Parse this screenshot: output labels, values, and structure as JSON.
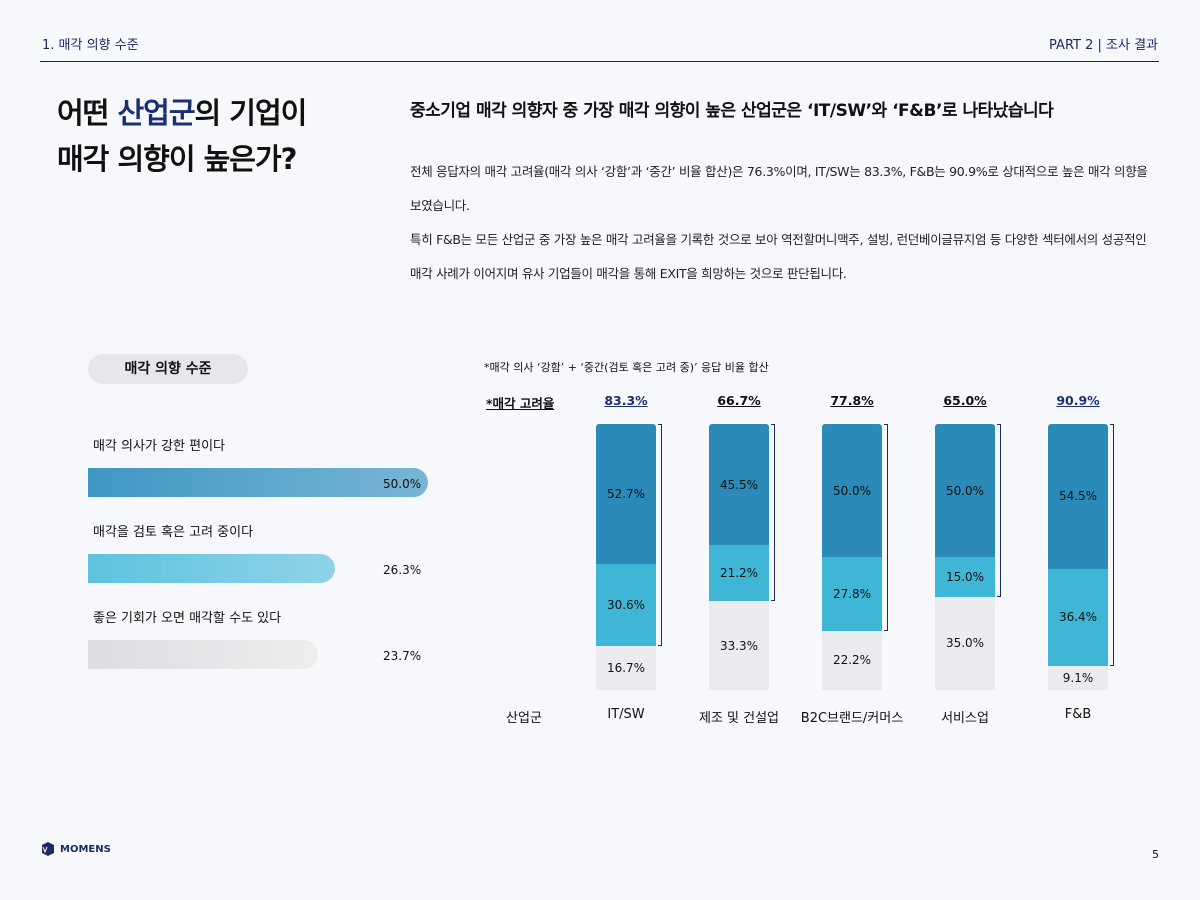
{
  "header": {
    "section": "1. 매각 의향 수준",
    "part": "PART 2 | 조사 결과"
  },
  "title": {
    "line1_pre": "어떤 ",
    "line1_hl": "산업군",
    "line1_post": "의 기업이",
    "line2": "매각 의향이 높은가?"
  },
  "subtitle": "중소기업 매각 의향자 중 가장 매각 의향이 높은 산업군은 ‘IT/SW’와 ‘F&B’로 나타났습니다",
  "body": [
    "전체 응답자의 매각 고려율(매각 의사 ‘강함’과 ‘중간’ 비율 합산)은 76.3%이며, IT/SW는 83.3%, F&B는 90.9%로 상대적으로 높은 매각 의향을 보였습니다.",
    "특히 F&B는 모든 산업군 중 가장 높은 매각 고려율을 기록한 것으로 보아 역전할머니맥주, 설빙, 런던베이글뮤지엄 등 다양한 섹터에서의 성공적인 매각 사례가 이어지며 유사 기업들이 매각을 통해 EXIT을 희망하는 것으로 판단됩니다."
  ],
  "legend_panel": {
    "title": "매각 의향 수준",
    "items": [
      {
        "label": "매각 의사가 강한 편이다",
        "value": "50.0%",
        "color": "#3f97c4"
      },
      {
        "label": "매각을 검토 혹은 고려 중이다",
        "value": "26.3%",
        "color": "#5ec3de"
      },
      {
        "label": "좋은 기회가 오면 매각할 수도 있다",
        "value": "23.7%",
        "color": "#dcdde0"
      }
    ]
  },
  "chart_data": {
    "type": "bar",
    "stacked": true,
    "note": "*매각 의사 ‘강함’ + ‘중간(검토 혹은 고려 중)’ 응답 비율 합산",
    "rate_label": "*매각 고려율",
    "axis_label": "산업군",
    "categories": [
      "IT/SW",
      "제조 및 건설업",
      "B2C브랜드/커머스",
      "서비스업",
      "F&B"
    ],
    "rates": [
      "83.3%",
      "66.7%",
      "77.8%",
      "65.0%",
      "90.9%"
    ],
    "rate_colors": [
      "#1b2f73",
      "#111111",
      "#111111",
      "#111111",
      "#1b2f73"
    ],
    "series": [
      {
        "values": [
          52.7,
          45.5,
          50.0,
          50.0,
          54.5
        ],
        "color": "#2b8ab8"
      },
      {
        "values": [
          30.6,
          21.2,
          27.8,
          15.0,
          36.4
        ],
        "color": "#40b6d6"
      },
      {
        "values": [
          16.7,
          33.3,
          22.2,
          35.0,
          9.1
        ],
        "color": "#ececf0"
      }
    ]
  },
  "footer": {
    "logo": "MOMENS",
    "page": "5"
  }
}
